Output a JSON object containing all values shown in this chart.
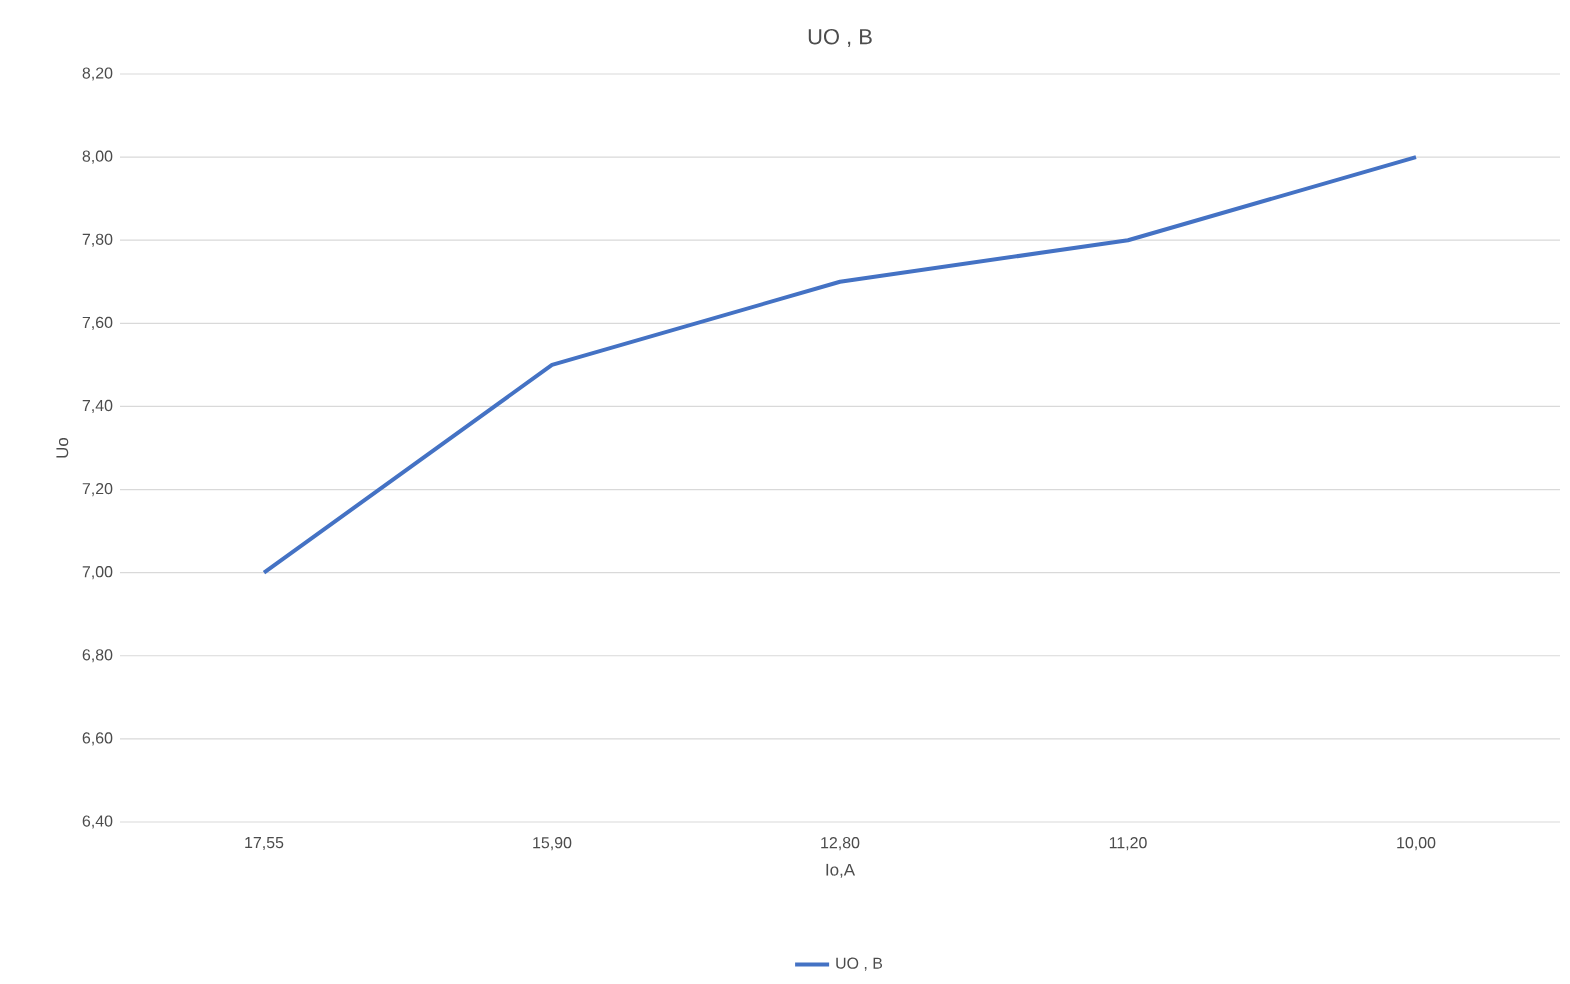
{
  "chart_data": {
    "type": "line",
    "title": "UO , B",
    "xlabel": "Io,A",
    "ylabel": "Uo",
    "categories": [
      "17,55",
      "15,90",
      "12,80",
      "11,20",
      "10,00"
    ],
    "series": [
      {
        "name": "UO , B",
        "color": "#4472c4",
        "values": [
          7.0,
          7.5,
          7.7,
          7.8,
          8.0
        ]
      }
    ],
    "ylim": [
      6.4,
      8.2
    ],
    "yticks": [
      {
        "value": 6.4,
        "label": "6,40"
      },
      {
        "value": 6.6,
        "label": "6,60"
      },
      {
        "value": 6.8,
        "label": "6,80"
      },
      {
        "value": 7.0,
        "label": "7,00"
      },
      {
        "value": 7.2,
        "label": "7,20"
      },
      {
        "value": 7.4,
        "label": "7,40"
      },
      {
        "value": 7.6,
        "label": "7,60"
      },
      {
        "value": 7.8,
        "label": "7,80"
      },
      {
        "value": 8.0,
        "label": "8,00"
      },
      {
        "value": 8.2,
        "label": "8,20"
      }
    ],
    "grid": "y",
    "legend": "bottom"
  }
}
